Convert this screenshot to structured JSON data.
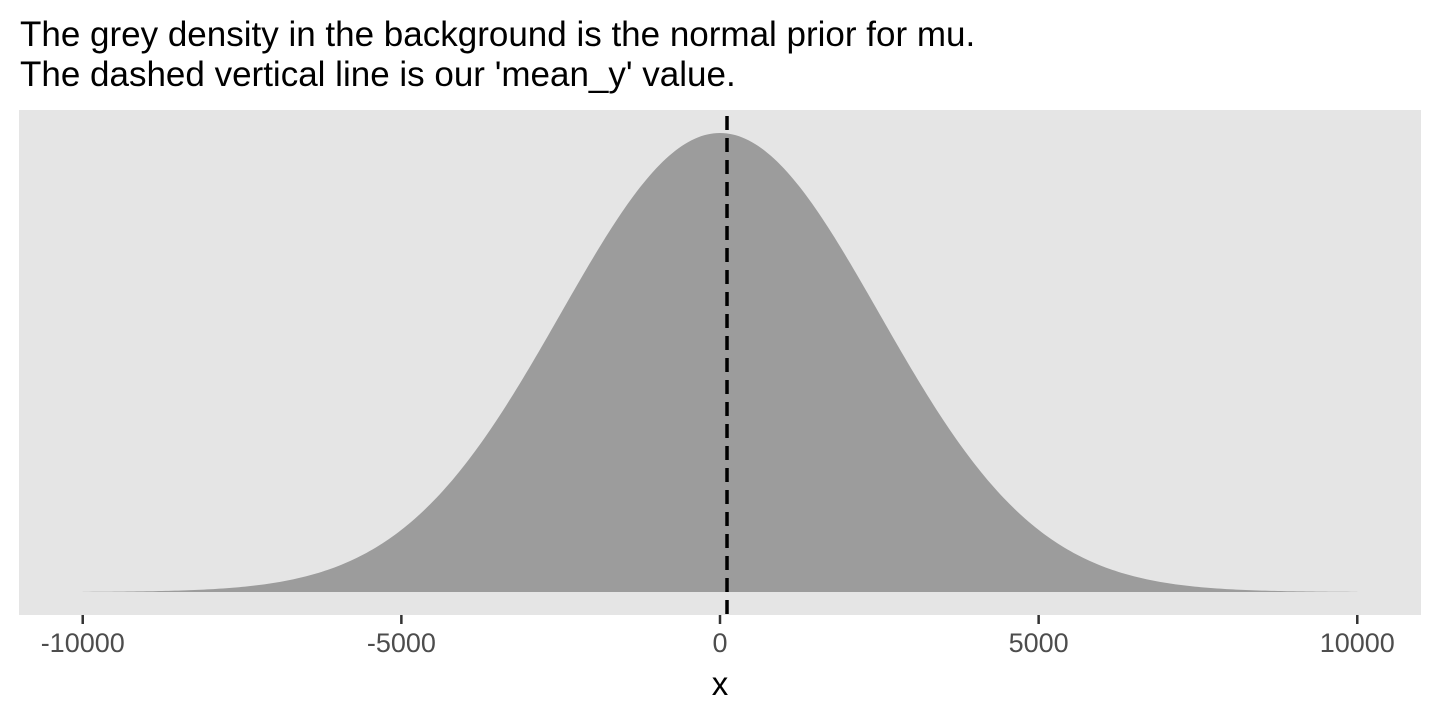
{
  "chart_data": {
    "type": "area",
    "title_lines": [
      "The grey density in the background is the normal prior for mu.",
      "The dashed vertical line is our 'mean_y' value."
    ],
    "xlabel": "x",
    "ylabel": "",
    "xlim": [
      -11000,
      11000
    ],
    "x_ticks": [
      -10000,
      -5000,
      0,
      5000,
      10000
    ],
    "x_tick_labels": [
      "-10000",
      "-5000",
      "0",
      "5000",
      "10000"
    ],
    "y_ticks_shown": false,
    "grid": false,
    "legend": "none",
    "density": {
      "distribution": "normal",
      "mean": 0,
      "sd": 2500,
      "x_range": [
        -10000,
        10000
      ]
    },
    "reference_line": {
      "x": 110,
      "style": "dashed",
      "color": "#000000"
    },
    "colors": {
      "panel": "#e5e5e5",
      "density_fill": "#9c9c9c",
      "tick": "#333333",
      "tick_label": "#4d4d4d"
    }
  }
}
